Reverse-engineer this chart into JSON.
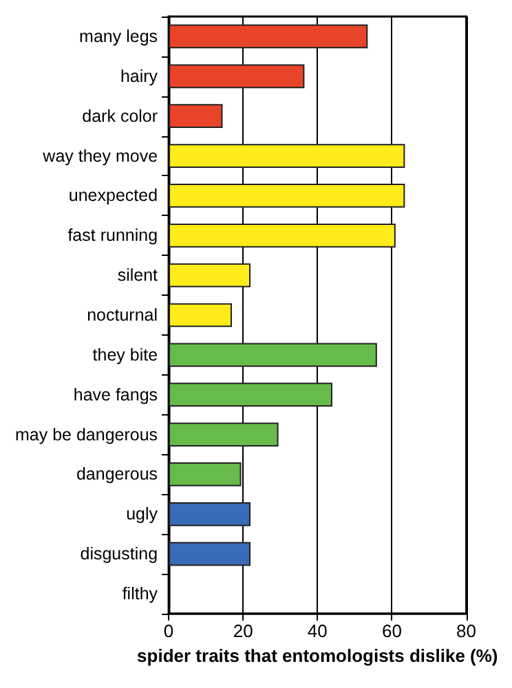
{
  "chart_data": {
    "type": "bar",
    "orientation": "horizontal",
    "xlabel": "spider traits that entomologists dislike (%)",
    "categories": [
      "many legs",
      "hairy",
      "dark color",
      "way they move",
      "unexpected",
      "fast running",
      "silent",
      "nocturnal",
      "they bite",
      "have fangs",
      "may be dangerous",
      "dangerous",
      "ugly",
      "disgusting",
      "filthy"
    ],
    "values": [
      53.5,
      36.5,
      14.5,
      63.5,
      63.5,
      61,
      22,
      17,
      56,
      44,
      29.5,
      19.5,
      22,
      22,
      0
    ],
    "colors": [
      "#e8442a",
      "#e8442a",
      "#e8442a",
      "#ffec1a",
      "#ffec1a",
      "#ffec1a",
      "#ffec1a",
      "#ffec1a",
      "#66bb4a",
      "#66bb4a",
      "#66bb4a",
      "#66bb4a",
      "#3a6bb8",
      "#3a6bb8",
      "#3a6bb8"
    ],
    "xlim": [
      0,
      80
    ],
    "xticks": [
      0,
      20,
      40,
      60,
      80
    ],
    "grid": "x"
  }
}
